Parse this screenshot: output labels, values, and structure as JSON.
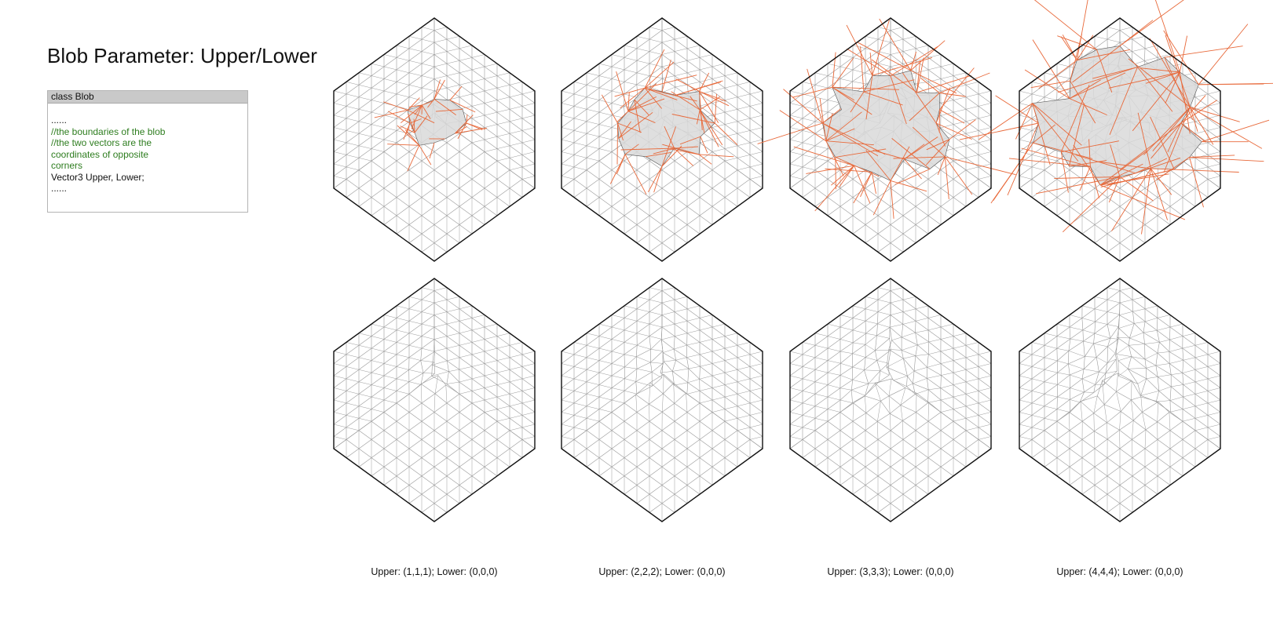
{
  "title": "Blob Parameter: Upper/Lower",
  "code_panel": {
    "header": "class Blob",
    "lines": [
      {
        "text": "......",
        "kind": "plain"
      },
      {
        "text": "//the boundaries of the blob",
        "kind": "comment"
      },
      {
        "text": "//the two vectors are the",
        "kind": "comment"
      },
      {
        "text": "coordinates of opposite",
        "kind": "comment"
      },
      {
        "text": "corners",
        "kind": "comment"
      },
      {
        "text": "Vector3 Upper, Lower;",
        "kind": "plain"
      },
      {
        "text": "......",
        "kind": "plain"
      }
    ]
  },
  "colors": {
    "grid_line": "#9a9a9a",
    "cube_edge": "#111111",
    "blob_edge": "#e8693a",
    "blob_fill": "#d9d9d9",
    "comment_text": "#2e7d1f"
  },
  "panels": [
    {
      "upper": [
        1,
        1,
        1
      ],
      "lower": [
        0,
        0,
        0
      ],
      "caption": "Upper: (1,1,1); Lower: (0,0,0)"
    },
    {
      "upper": [
        2,
        2,
        2
      ],
      "lower": [
        0,
        0,
        0
      ],
      "caption": "Upper: (2,2,2); Lower: (0,0,0)"
    },
    {
      "upper": [
        3,
        3,
        3
      ],
      "lower": [
        0,
        0,
        0
      ],
      "caption": "Upper: (3,3,3); Lower: (0,0,0)"
    },
    {
      "upper": [
        4,
        4,
        4
      ],
      "lower": [
        0,
        0,
        0
      ],
      "caption": "Upper: (4,4,4); Lower: (0,0,0)"
    }
  ],
  "rows": [
    {
      "name": "with-blob-overlay"
    },
    {
      "name": "deformed-mesh"
    }
  ]
}
